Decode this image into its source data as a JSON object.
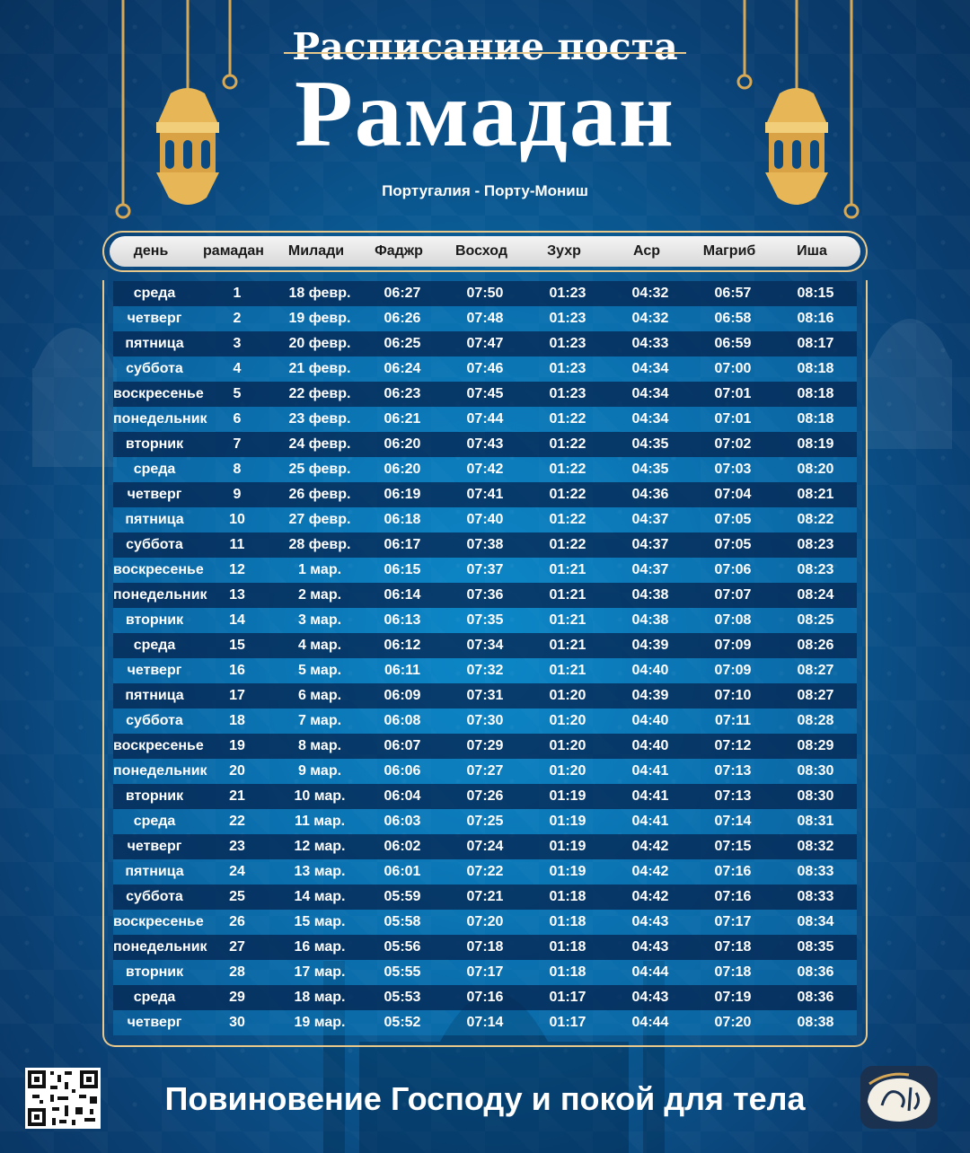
{
  "header": {
    "subtitle": "Расписание поста",
    "title": "Рамадан",
    "location": "Португалия - Порту-Мониш"
  },
  "table": {
    "columns": [
      "день",
      "рамадан",
      "Милади",
      "Фаджр",
      "Восход",
      "Зухр",
      "Аср",
      "Магриб",
      "Иша"
    ],
    "rows": [
      [
        "среда",
        "1",
        "18 февр.",
        "06:27",
        "07:50",
        "01:23",
        "04:32",
        "06:57",
        "08:15"
      ],
      [
        "четверг",
        "2",
        "19 февр.",
        "06:26",
        "07:48",
        "01:23",
        "04:32",
        "06:58",
        "08:16"
      ],
      [
        "пятница",
        "3",
        "20 февр.",
        "06:25",
        "07:47",
        "01:23",
        "04:33",
        "06:59",
        "08:17"
      ],
      [
        "суббота",
        "4",
        "21 февр.",
        "06:24",
        "07:46",
        "01:23",
        "04:34",
        "07:00",
        "08:18"
      ],
      [
        "воскресенье",
        "5",
        "22 февр.",
        "06:23",
        "07:45",
        "01:23",
        "04:34",
        "07:01",
        "08:18"
      ],
      [
        "понедельник",
        "6",
        "23 февр.",
        "06:21",
        "07:44",
        "01:22",
        "04:34",
        "07:01",
        "08:18"
      ],
      [
        "вторник",
        "7",
        "24 февр.",
        "06:20",
        "07:43",
        "01:22",
        "04:35",
        "07:02",
        "08:19"
      ],
      [
        "среда",
        "8",
        "25 февр.",
        "06:20",
        "07:42",
        "01:22",
        "04:35",
        "07:03",
        "08:20"
      ],
      [
        "четверг",
        "9",
        "26 февр.",
        "06:19",
        "07:41",
        "01:22",
        "04:36",
        "07:04",
        "08:21"
      ],
      [
        "пятница",
        "10",
        "27 февр.",
        "06:18",
        "07:40",
        "01:22",
        "04:37",
        "07:05",
        "08:22"
      ],
      [
        "суббота",
        "11",
        "28 февр.",
        "06:17",
        "07:38",
        "01:22",
        "04:37",
        "07:05",
        "08:23"
      ],
      [
        "воскресенье",
        "12",
        "1 мар.",
        "06:15",
        "07:37",
        "01:21",
        "04:37",
        "07:06",
        "08:23"
      ],
      [
        "понедельник",
        "13",
        "2 мар.",
        "06:14",
        "07:36",
        "01:21",
        "04:38",
        "07:07",
        "08:24"
      ],
      [
        "вторник",
        "14",
        "3 мар.",
        "06:13",
        "07:35",
        "01:21",
        "04:38",
        "07:08",
        "08:25"
      ],
      [
        "среда",
        "15",
        "4 мар.",
        "06:12",
        "07:34",
        "01:21",
        "04:39",
        "07:09",
        "08:26"
      ],
      [
        "четверг",
        "16",
        "5 мар.",
        "06:11",
        "07:32",
        "01:21",
        "04:40",
        "07:09",
        "08:27"
      ],
      [
        "пятница",
        "17",
        "6 мар.",
        "06:09",
        "07:31",
        "01:20",
        "04:39",
        "07:10",
        "08:27"
      ],
      [
        "суббота",
        "18",
        "7 мар.",
        "06:08",
        "07:30",
        "01:20",
        "04:40",
        "07:11",
        "08:28"
      ],
      [
        "воскресенье",
        "19",
        "8 мар.",
        "06:07",
        "07:29",
        "01:20",
        "04:40",
        "07:12",
        "08:29"
      ],
      [
        "понедельник",
        "20",
        "9 мар.",
        "06:06",
        "07:27",
        "01:20",
        "04:41",
        "07:13",
        "08:30"
      ],
      [
        "вторник",
        "21",
        "10 мар.",
        "06:04",
        "07:26",
        "01:19",
        "04:41",
        "07:13",
        "08:30"
      ],
      [
        "среда",
        "22",
        "11 мар.",
        "06:03",
        "07:25",
        "01:19",
        "04:41",
        "07:14",
        "08:31"
      ],
      [
        "четверг",
        "23",
        "12 мар.",
        "06:02",
        "07:24",
        "01:19",
        "04:42",
        "07:15",
        "08:32"
      ],
      [
        "пятница",
        "24",
        "13 мар.",
        "06:01",
        "07:22",
        "01:19",
        "04:42",
        "07:16",
        "08:33"
      ],
      [
        "суббота",
        "25",
        "14 мар.",
        "05:59",
        "07:21",
        "01:18",
        "04:42",
        "07:16",
        "08:33"
      ],
      [
        "воскресенье",
        "26",
        "15 мар.",
        "05:58",
        "07:20",
        "01:18",
        "04:43",
        "07:17",
        "08:34"
      ],
      [
        "понедельник",
        "27",
        "16 мар.",
        "05:56",
        "07:18",
        "01:18",
        "04:43",
        "07:18",
        "08:35"
      ],
      [
        "вторник",
        "28",
        "17 мар.",
        "05:55",
        "07:17",
        "01:18",
        "04:44",
        "07:18",
        "08:36"
      ],
      [
        "среда",
        "29",
        "18 мар.",
        "05:53",
        "07:16",
        "01:17",
        "04:43",
        "07:19",
        "08:36"
      ],
      [
        "четверг",
        "30",
        "19 мар.",
        "05:52",
        "07:14",
        "01:17",
        "04:44",
        "07:20",
        "08:38"
      ]
    ]
  },
  "footer": {
    "slogan": "Повиновение Господу и покой для тела",
    "qr_icon": "qr-code-icon",
    "logo_icon": "app-logo-icon"
  },
  "colors": {
    "gold": "#e9c98b",
    "row_dark": "#0b3a6a",
    "row_light": "#1a8fd0"
  }
}
